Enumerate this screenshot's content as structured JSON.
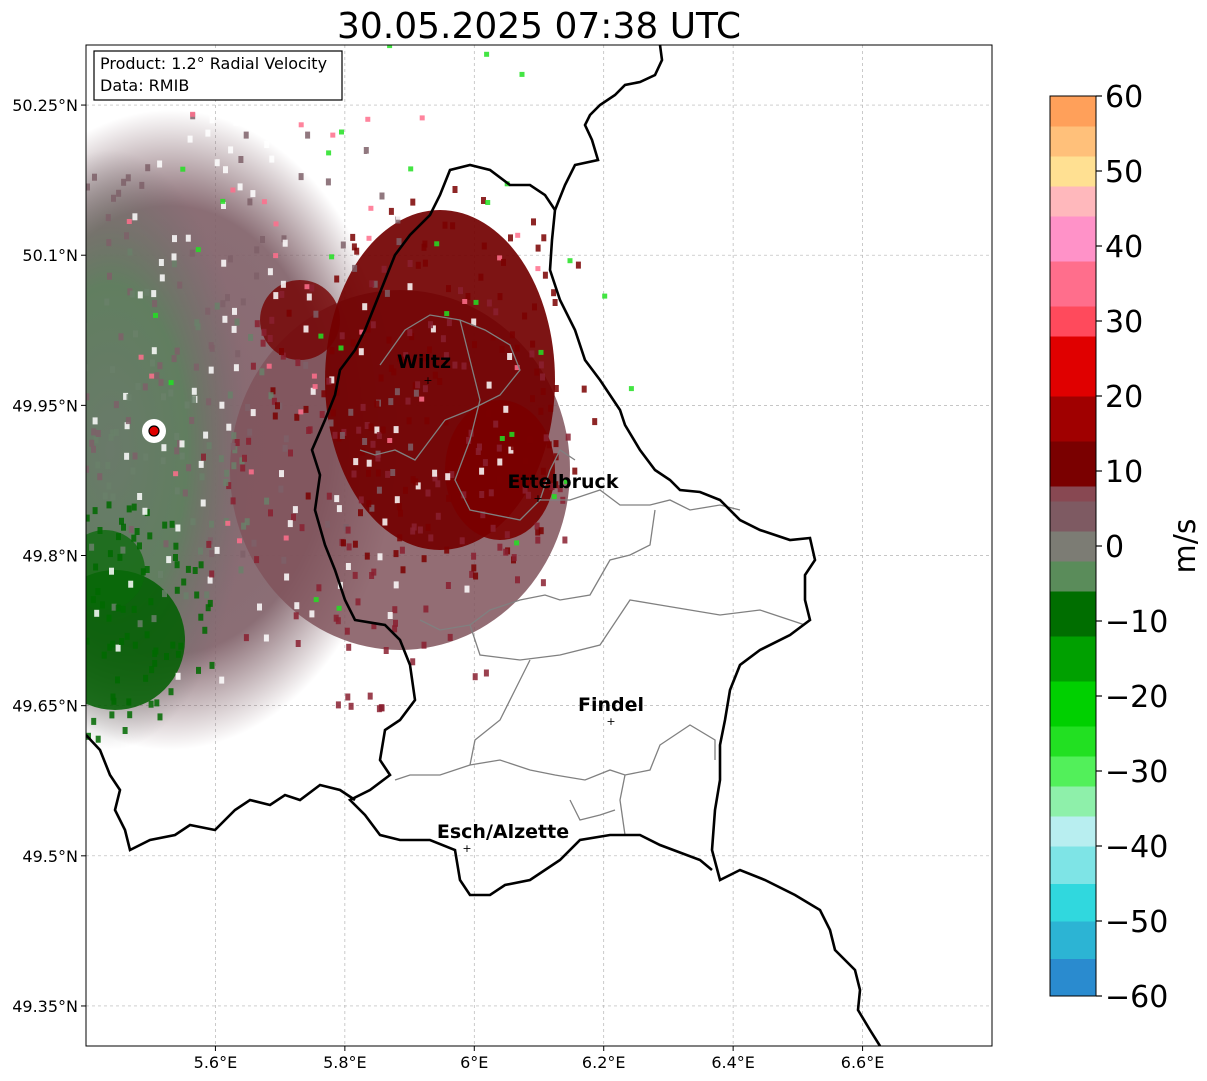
{
  "title": "30.05.2025 07:38 UTC",
  "info": {
    "product": "Product: 1.2° Radial Velocity",
    "data": "Data: RMIB"
  },
  "map": {
    "lon_range": [
      5.4,
      6.8
    ],
    "lat_range": [
      49.31,
      50.31
    ],
    "lon_ticks": [
      {
        "value": 5.6,
        "label": "5.6°E"
      },
      {
        "value": 5.8,
        "label": "5.8°E"
      },
      {
        "value": 6.0,
        "label": "6°E"
      },
      {
        "value": 6.2,
        "label": "6.2°E"
      },
      {
        "value": 6.4,
        "label": "6.4°E"
      },
      {
        "value": 6.6,
        "label": "6.6°E"
      }
    ],
    "lat_ticks": [
      {
        "value": 50.25,
        "label": "50.25°N"
      },
      {
        "value": 50.1,
        "label": "50.1°N"
      },
      {
        "value": 49.95,
        "label": "49.95°N"
      },
      {
        "value": 49.8,
        "label": "49.8°N"
      },
      {
        "value": 49.65,
        "label": "49.65°N"
      },
      {
        "value": 49.5,
        "label": "49.5°N"
      },
      {
        "value": 49.35,
        "label": "49.35°N"
      }
    ],
    "gridlines": true,
    "radar_site": {
      "lon": 5.505,
      "lat": 49.914,
      "color": "#e00000"
    },
    "cities": [
      {
        "name": "Wiltz",
        "lon": 5.93,
        "lat": 49.966
      },
      {
        "name": "Ettelbruck",
        "lon": 6.1,
        "lat": 49.848
      },
      {
        "name": "Findel",
        "lon": 6.21,
        "lat": 49.627
      },
      {
        "name": "Esch/Alzette",
        "lon": 5.99,
        "lat": 49.5
      }
    ]
  },
  "colorbar": {
    "label": "m/s",
    "min": -60,
    "max": 60,
    "ticks": [
      {
        "value": 60,
        "label": "60"
      },
      {
        "value": 50,
        "label": "50"
      },
      {
        "value": 40,
        "label": "40"
      },
      {
        "value": 30,
        "label": "30"
      },
      {
        "value": 20,
        "label": "20"
      },
      {
        "value": 10,
        "label": "10"
      },
      {
        "value": 0,
        "label": "0"
      },
      {
        "value": -10,
        "label": "−10"
      },
      {
        "value": -20,
        "label": "−20"
      },
      {
        "value": -30,
        "label": "−30"
      },
      {
        "value": -40,
        "label": "−40"
      },
      {
        "value": -50,
        "label": "−50"
      },
      {
        "value": -60,
        "label": "−60"
      }
    ],
    "stops": [
      {
        "from": -60,
        "to": -55,
        "color": "#2a8bcf"
      },
      {
        "from": -55,
        "to": -50,
        "color": "#2cb4d4"
      },
      {
        "from": -50,
        "to": -45,
        "color": "#30d8de"
      },
      {
        "from": -45,
        "to": -40,
        "color": "#7ee4e6"
      },
      {
        "from": -40,
        "to": -36,
        "color": "#b8eef0"
      },
      {
        "from": -36,
        "to": -32,
        "color": "#8ef0aa"
      },
      {
        "from": -32,
        "to": -28,
        "color": "#52f05a"
      },
      {
        "from": -28,
        "to": -24,
        "color": "#22e022"
      },
      {
        "from": -24,
        "to": -18,
        "color": "#00d000"
      },
      {
        "from": -18,
        "to": -12,
        "color": "#00a000"
      },
      {
        "from": -12,
        "to": -6,
        "color": "#006e00"
      },
      {
        "from": -6,
        "to": -2,
        "color": "#5a8c5a"
      },
      {
        "from": -2,
        "to": 2,
        "color": "#7c7c74"
      },
      {
        "from": 2,
        "to": 6,
        "color": "#7e5a62"
      },
      {
        "from": 6,
        "to": 8,
        "color": "#884852"
      },
      {
        "from": 8,
        "to": 14,
        "color": "#7a0000"
      },
      {
        "from": 14,
        "to": 20,
        "color": "#a00000"
      },
      {
        "from": 20,
        "to": 28,
        "color": "#e00000"
      },
      {
        "from": 28,
        "to": 32,
        "color": "#ff4a5c"
      },
      {
        "from": 32,
        "to": 38,
        "color": "#ff6e8c"
      },
      {
        "from": 38,
        "to": 44,
        "color": "#ff92c8"
      },
      {
        "from": 44,
        "to": 48,
        "color": "#ffb8bc"
      },
      {
        "from": 48,
        "to": 52,
        "color": "#ffe092"
      },
      {
        "from": 52,
        "to": 56,
        "color": "#ffc07a"
      },
      {
        "from": 56,
        "to": 60,
        "color": "#ffa05a"
      }
    ]
  },
  "colors": {
    "border_country": "#000000",
    "border_canton": "#808080",
    "grid": "#b4b4b4"
  }
}
